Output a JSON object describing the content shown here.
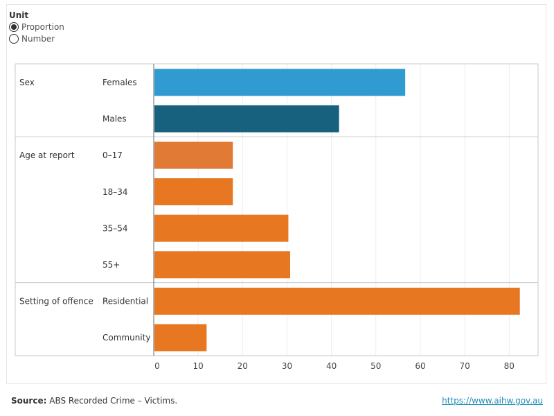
{
  "controls": {
    "unit_title": "Unit",
    "options": [
      {
        "label": "Proportion",
        "selected": true
      },
      {
        "label": "Number",
        "selected": false
      }
    ]
  },
  "chart_data": {
    "type": "bar",
    "orientation": "horizontal",
    "groups": [
      {
        "name": "Sex",
        "categories": [
          "Females",
          "Males"
        ],
        "values": [
          56.6,
          41.7
        ],
        "colors": [
          "#2f9bd0",
          "#17607e"
        ]
      },
      {
        "name": "Age at report",
        "categories": [
          "0–17",
          "18–34",
          "35–54",
          "55+"
        ],
        "values": [
          17.8,
          17.8,
          30.3,
          30.7
        ],
        "colors": [
          "#e07a35",
          "#e87722",
          "#e87722",
          "#e87722"
        ]
      },
      {
        "name": "Setting of offence",
        "categories": [
          "Residential",
          "Community"
        ],
        "values": [
          82.4,
          11.9
        ],
        "colors": [
          "#e87722",
          "#e87722"
        ]
      }
    ],
    "xticks": [
      0,
      10,
      20,
      30,
      40,
      50,
      60,
      70,
      80
    ],
    "xlim": [
      0,
      86.5
    ],
    "grid": true
  },
  "footer": {
    "source_label": "Source:",
    "source_text": "ABS Recorded Crime – Victims.",
    "link_text": "https://www.aihw.gov.au"
  }
}
